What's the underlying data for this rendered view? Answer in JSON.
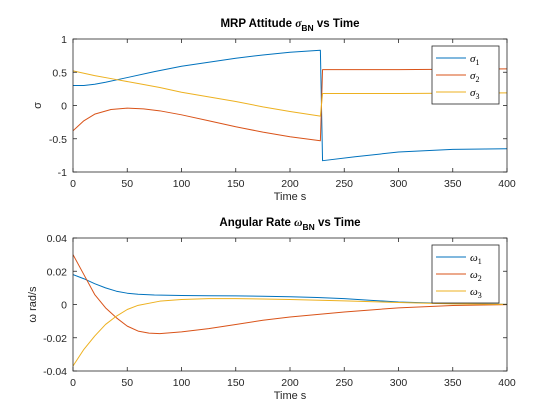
{
  "colors": {
    "series1": "#0072BD",
    "series2": "#D95319",
    "series3": "#EDB120"
  },
  "chart_data": [
    {
      "type": "line",
      "title_parts": [
        "MRP Attitude ",
        "σ",
        "BN",
        " vs Time"
      ],
      "xlabel": "Time s",
      "ylabel": "σ",
      "xlim": [
        0,
        400
      ],
      "ylim": [
        -1,
        1
      ],
      "xticks": [
        0,
        50,
        100,
        150,
        200,
        250,
        300,
        350,
        400
      ],
      "yticks": [
        -1,
        -0.5,
        0,
        0.5,
        1
      ],
      "ytick_labels": [
        "-1",
        "-0.5",
        "0",
        "0.5",
        "1"
      ],
      "grid": false,
      "legend_position": "top-right",
      "series": [
        {
          "name": "σ",
          "sub": "1",
          "x": [
            0,
            10,
            20,
            30,
            50,
            75,
            100,
            125,
            150,
            175,
            200,
            228,
            230,
            260,
            300,
            350,
            400
          ],
          "y": [
            0.3,
            0.3,
            0.32,
            0.35,
            0.42,
            0.51,
            0.59,
            0.65,
            0.71,
            0.76,
            0.8,
            0.83,
            -0.83,
            -0.77,
            -0.7,
            -0.66,
            -0.65
          ]
        },
        {
          "name": "σ",
          "sub": "2",
          "x": [
            0,
            10,
            20,
            35,
            50,
            65,
            80,
            100,
            125,
            150,
            175,
            200,
            228,
            230,
            300,
            400
          ],
          "y": [
            -0.38,
            -0.23,
            -0.13,
            -0.06,
            -0.04,
            -0.05,
            -0.08,
            -0.14,
            -0.23,
            -0.32,
            -0.4,
            -0.47,
            -0.53,
            0.54,
            0.54,
            0.55
          ]
        },
        {
          "name": "σ",
          "sub": "3",
          "x": [
            0,
            20,
            40,
            60,
            80,
            100,
            125,
            150,
            175,
            200,
            228,
            230,
            300,
            400
          ],
          "y": [
            0.52,
            0.45,
            0.39,
            0.33,
            0.27,
            0.2,
            0.13,
            0.06,
            -0.02,
            -0.09,
            -0.16,
            0.18,
            0.18,
            0.19
          ]
        }
      ]
    },
    {
      "type": "line",
      "title_parts": [
        "Angular Rate ",
        "ω",
        "BN",
        " vs Time"
      ],
      "xlabel": "Time s",
      "ylabel": "ω rad/s",
      "xlim": [
        0,
        400
      ],
      "ylim": [
        -0.04,
        0.04
      ],
      "xticks": [
        0,
        50,
        100,
        150,
        200,
        250,
        300,
        350,
        400
      ],
      "yticks": [
        -0.04,
        -0.02,
        0,
        0.02,
        0.04
      ],
      "ytick_labels": [
        "-0.04",
        "-0.02",
        "0",
        "0.02",
        "0.04"
      ],
      "grid": false,
      "legend_position": "top-right",
      "series": [
        {
          "name": "ω",
          "sub": "1",
          "x": [
            0,
            10,
            20,
            30,
            40,
            50,
            60,
            75,
            100,
            125,
            150,
            175,
            200,
            225,
            250,
            275,
            300,
            350,
            400
          ],
          "y": [
            0.018,
            0.0155,
            0.0125,
            0.01,
            0.008,
            0.0068,
            0.0062,
            0.0057,
            0.0054,
            0.0053,
            0.0052,
            0.005,
            0.0047,
            0.0042,
            0.0035,
            0.0025,
            0.0015,
            0.0005,
            0.0001
          ]
        },
        {
          "name": "ω",
          "sub": "2",
          "x": [
            0,
            10,
            20,
            30,
            40,
            50,
            60,
            70,
            80,
            100,
            125,
            150,
            175,
            200,
            250,
            300,
            350,
            400
          ],
          "y": [
            0.03,
            0.018,
            0.006,
            -0.002,
            -0.008,
            -0.013,
            -0.016,
            -0.0172,
            -0.0175,
            -0.0165,
            -0.0145,
            -0.012,
            -0.0095,
            -0.0075,
            -0.0045,
            -0.002,
            -0.0006,
            -0.0001
          ]
        },
        {
          "name": "ω",
          "sub": "3",
          "x": [
            0,
            10,
            20,
            30,
            40,
            50,
            60,
            80,
            100,
            125,
            150,
            175,
            200,
            250,
            300,
            350,
            400
          ],
          "y": [
            -0.037,
            -0.027,
            -0.019,
            -0.012,
            -0.007,
            -0.003,
            -0.0005,
            0.002,
            0.003,
            0.0035,
            0.0035,
            0.0033,
            0.003,
            0.0022,
            0.0012,
            0.0004,
            0.0001
          ]
        }
      ]
    }
  ]
}
